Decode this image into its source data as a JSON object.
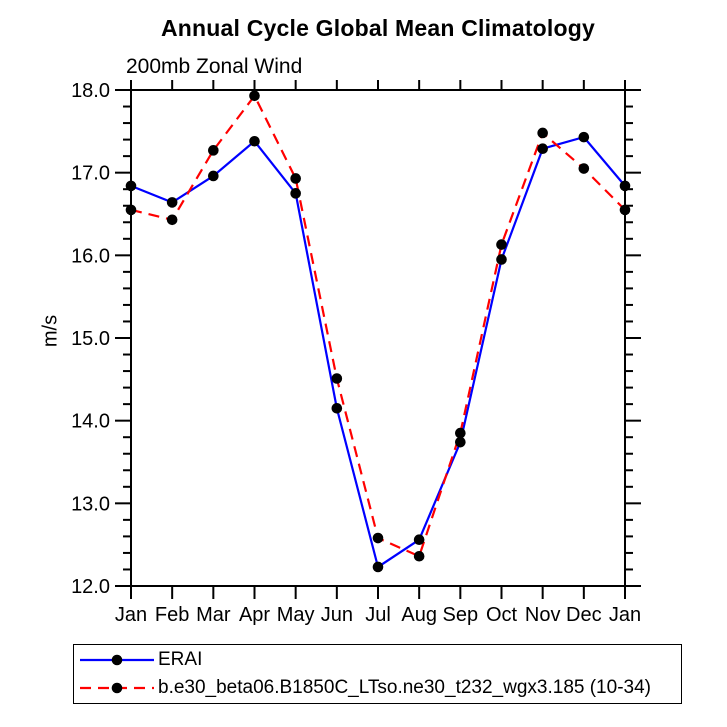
{
  "chart_data": {
    "type": "line",
    "title": "Annual Cycle Global Mean Climatology",
    "subtitle": "200mb Zonal Wind",
    "ylabel": "m/s",
    "xlabel": "",
    "categories": [
      "Jan",
      "Feb",
      "Mar",
      "Apr",
      "May",
      "Jun",
      "Jul",
      "Aug",
      "Sep",
      "Oct",
      "Nov",
      "Dec",
      "Jan"
    ],
    "ylim": [
      12.0,
      18.0
    ],
    "ytick_major": 1.0,
    "ytick_minor": 0.2,
    "ytick_decimals": 1,
    "grid": false,
    "frame": "box-with-outward-ticks",
    "legend_position": "bottom-left",
    "axis_color": "#000000",
    "background_color": "#ffffff",
    "marker_color": "#000000",
    "series": [
      {
        "name": "ERAI",
        "color": "#0000ff",
        "line_style": "solid",
        "marker": "circle",
        "values": [
          16.84,
          16.64,
          16.96,
          17.38,
          16.75,
          14.15,
          12.23,
          12.56,
          13.74,
          15.95,
          17.29,
          17.43,
          16.84
        ]
      },
      {
        "name": "b.e30_beta06.B1850C_LTso.ne30_t232_wgx3.185 (10-34)",
        "color": "#ff0000",
        "line_style": "dashed",
        "marker": "circle",
        "values": [
          16.55,
          16.43,
          17.27,
          17.93,
          16.93,
          14.51,
          12.58,
          12.36,
          13.85,
          16.13,
          17.48,
          17.05,
          16.55
        ]
      }
    ]
  }
}
